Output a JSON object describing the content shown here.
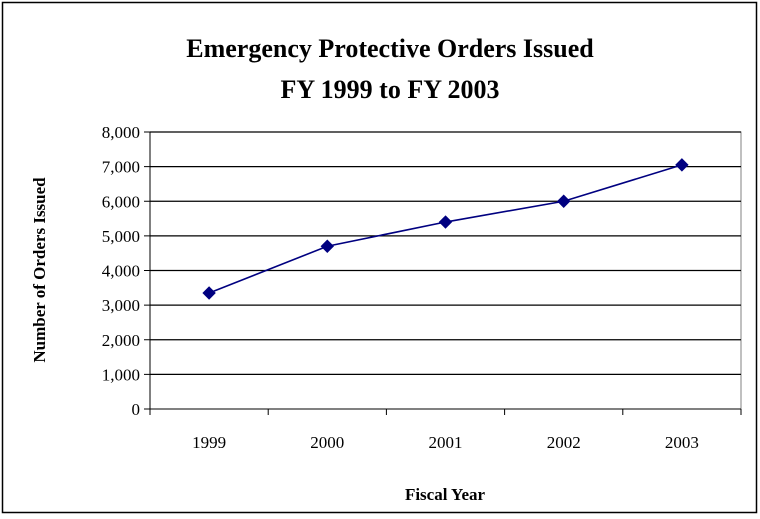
{
  "chart_data": {
    "type": "line",
    "title_line1": "Emergency Protective Orders Issued",
    "title_line2": "FY 1999 to FY 2003",
    "xlabel": "Fiscal Year",
    "ylabel": "Number of Orders Issued",
    "categories": [
      "1999",
      "2000",
      "2001",
      "2002",
      "2003"
    ],
    "series": [
      {
        "values": [
          3350,
          4700,
          5400,
          6000,
          7050
        ],
        "color": "#000080",
        "marker": "diamond"
      }
    ],
    "ylim": [
      0,
      8000
    ],
    "yticks": [
      0,
      1000,
      2000,
      3000,
      4000,
      5000,
      6000,
      7000,
      8000
    ],
    "ytick_labels": [
      "0",
      "1,000",
      "2,000",
      "3,000",
      "4,000",
      "5,000",
      "6,000",
      "7,000",
      "8,000"
    ],
    "grid": true,
    "legend": "none"
  }
}
